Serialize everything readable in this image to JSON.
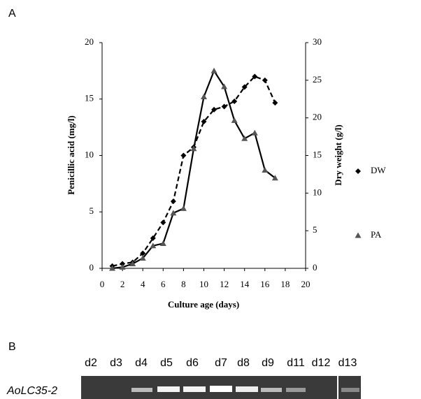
{
  "panel_a": "A",
  "panel_b": "B",
  "chart_data": {
    "type": "line",
    "x_label": "Culture age (days)",
    "y_label": "Penicillic acid (mg/l)",
    "y2_label": "Dry weight (g/l)",
    "x": [
      1,
      2,
      3,
      4,
      5,
      6,
      7,
      8,
      9,
      10,
      11,
      12,
      13,
      14,
      15,
      16,
      17
    ],
    "series": [
      {
        "name": "DW",
        "color": "#000000",
        "marker": "diamond",
        "line_style": "dashed",
        "axis": "y2",
        "values": [
          0.3,
          0.6,
          0.8,
          2.0,
          4.0,
          6.1,
          8.9,
          15.0,
          16.1,
          19.5,
          21.1,
          21.5,
          22.2,
          24.1,
          25.5,
          25.0,
          22.0
        ]
      },
      {
        "name": "PA",
        "color": "#555555",
        "marker": "triangle",
        "line_style": "solid",
        "values": [
          0,
          0.1,
          0.4,
          0.9,
          2.0,
          2.2,
          4.9,
          5.3,
          10.6,
          15.2,
          17.5,
          16.1,
          13.1,
          11.5,
          12.0,
          8.7,
          8.0
        ]
      }
    ],
    "xlim": [
      0,
      20
    ],
    "xticks": [
      0,
      2,
      4,
      6,
      8,
      10,
      12,
      14,
      16,
      18,
      20
    ],
    "ylim": [
      0,
      20
    ],
    "yticks": [
      0,
      5,
      10,
      15,
      20
    ],
    "y2lim": [
      0,
      30
    ],
    "y2ticks": [
      0,
      5,
      10,
      15,
      20,
      25,
      30
    ],
    "legend": "right",
    "grid": false
  },
  "gel": {
    "lanes": [
      "d2",
      "d3",
      "d4",
      "d5",
      "d6",
      "d7",
      "d8",
      "d9",
      "d11",
      "d12",
      "d13"
    ],
    "gene": "AoLC35-2"
  }
}
